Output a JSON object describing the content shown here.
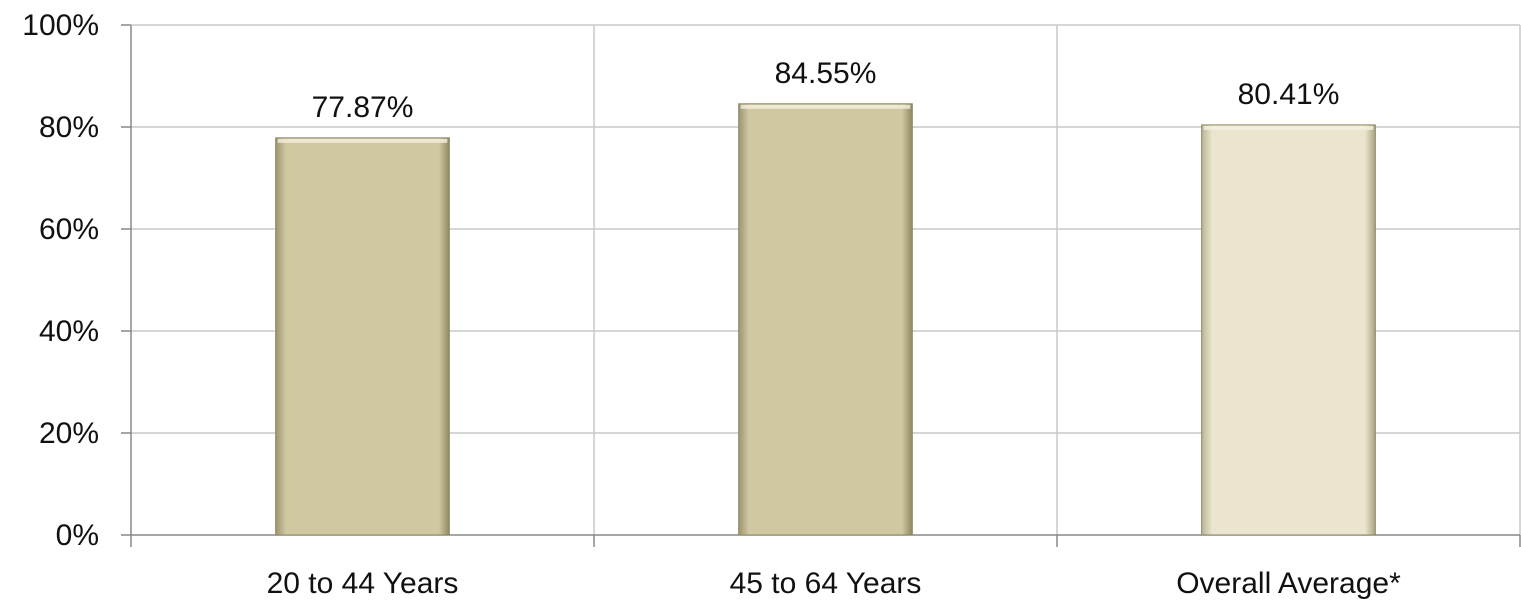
{
  "chart_data": {
    "type": "bar",
    "categories": [
      "20 to 44 Years",
      "45 to 64 Years",
      "Overall Average*"
    ],
    "values": [
      77.87,
      84.55,
      80.41
    ],
    "value_labels": [
      "77.87%",
      "84.55%",
      "80.41%"
    ],
    "ylim": [
      0,
      100
    ],
    "yticks": [
      {
        "value": 0,
        "label": "0%"
      },
      {
        "value": 20,
        "label": "20%"
      },
      {
        "value": 40,
        "label": "40%"
      },
      {
        "value": 60,
        "label": "60%"
      },
      {
        "value": 80,
        "label": "80%"
      },
      {
        "value": 100,
        "label": "100%"
      }
    ],
    "grid": true,
    "colors": [
      "#cfc8a2",
      "#cfc8a2",
      "#ebe5cd"
    ],
    "title": "",
    "xlabel": "",
    "ylabel": ""
  }
}
